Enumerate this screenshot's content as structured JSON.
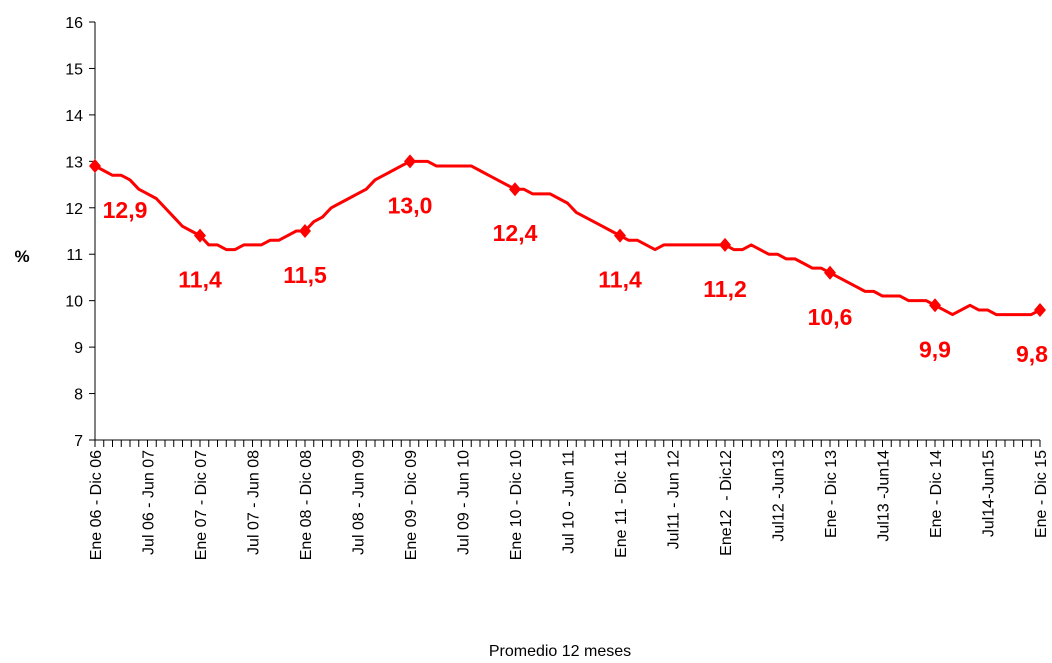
{
  "chart_data": {
    "type": "line",
    "ylabel": "%",
    "xlabel": "Promedio 12 meses",
    "categories": [
      "Ene 06 - Dic 06",
      null,
      null,
      null,
      null,
      null,
      "Jul 06 - Jun 07",
      null,
      null,
      null,
      null,
      null,
      "Ene 07 - Dic 07",
      null,
      null,
      null,
      null,
      null,
      "Jul 07 - Jun 08",
      null,
      null,
      null,
      null,
      null,
      "Ene 08 - Dic 08",
      null,
      null,
      null,
      null,
      null,
      "Jul 08 - Jun 09",
      null,
      null,
      null,
      null,
      null,
      "Ene 09 - Dic 09",
      null,
      null,
      null,
      null,
      null,
      "Jul 09 - Jun 10",
      null,
      null,
      null,
      null,
      null,
      "Ene 10 - Dic 10",
      null,
      null,
      null,
      null,
      null,
      "Jul 10 - Jun 11",
      null,
      null,
      null,
      null,
      null,
      "Ene 11 - Dic 11",
      null,
      null,
      null,
      null,
      null,
      "Jul11 - Jun 12",
      null,
      null,
      null,
      null,
      null,
      "Ene12  - Dic12",
      null,
      null,
      null,
      null,
      null,
      "Jul12 -Jun13",
      null,
      null,
      null,
      null,
      null,
      "Ene - Dic 13",
      null,
      null,
      null,
      null,
      null,
      "Jul13 -Jun14",
      null,
      null,
      null,
      null,
      null,
      "Ene - Dic 14",
      null,
      null,
      null,
      null,
      null,
      "Jul14-Jun15",
      null,
      null,
      null,
      null,
      null,
      "Ene - Dic 15"
    ],
    "series": [
      {
        "color": "#ff0000",
        "values": [
          12.9,
          12.8,
          12.7,
          12.7,
          12.6,
          12.4,
          12.3,
          12.2,
          12.0,
          11.8,
          11.6,
          11.5,
          11.4,
          11.2,
          11.2,
          11.1,
          11.1,
          11.2,
          11.2,
          11.2,
          11.3,
          11.3,
          11.4,
          11.5,
          11.5,
          11.7,
          11.8,
          12.0,
          12.1,
          12.2,
          12.3,
          12.4,
          12.6,
          12.7,
          12.8,
          12.9,
          13.0,
          13.0,
          13.0,
          12.9,
          12.9,
          12.9,
          12.9,
          12.9,
          12.8,
          12.7,
          12.6,
          12.5,
          12.4,
          12.4,
          12.3,
          12.3,
          12.3,
          12.2,
          12.1,
          11.9,
          11.8,
          11.7,
          11.6,
          11.5,
          11.4,
          11.3,
          11.3,
          11.2,
          11.1,
          11.2,
          11.2,
          11.2,
          11.2,
          11.2,
          11.2,
          11.2,
          11.2,
          11.1,
          11.1,
          11.2,
          11.1,
          11.0,
          11.0,
          10.9,
          10.9,
          10.8,
          10.7,
          10.7,
          10.6,
          10.5,
          10.4,
          10.3,
          10.2,
          10.2,
          10.1,
          10.1,
          10.1,
          10.0,
          10.0,
          10.0,
          9.9,
          9.8,
          9.7,
          9.8,
          9.9,
          9.8,
          9.8,
          9.7,
          9.7,
          9.7,
          9.7,
          9.7,
          9.8
        ],
        "value_labels": [
          "12,9",
          null,
          null,
          null,
          null,
          null,
          null,
          null,
          null,
          null,
          null,
          null,
          "11,4",
          null,
          null,
          null,
          null,
          null,
          null,
          null,
          null,
          null,
          null,
          null,
          "11,5",
          null,
          null,
          null,
          null,
          null,
          null,
          null,
          null,
          null,
          null,
          null,
          "13,0",
          null,
          null,
          null,
          null,
          null,
          null,
          null,
          null,
          null,
          null,
          null,
          "12,4",
          null,
          null,
          null,
          null,
          null,
          null,
          null,
          null,
          null,
          null,
          null,
          "11,4",
          null,
          null,
          null,
          null,
          null,
          null,
          null,
          null,
          null,
          null,
          null,
          "11,2",
          null,
          null,
          null,
          null,
          null,
          null,
          null,
          null,
          null,
          null,
          null,
          "10,6",
          null,
          null,
          null,
          null,
          null,
          null,
          null,
          null,
          null,
          null,
          null,
          "9,9",
          null,
          null,
          null,
          null,
          null,
          null,
          null,
          null,
          null,
          null,
          null,
          "9,8"
        ]
      }
    ],
    "ylim": [
      7,
      16
    ],
    "yticks": [
      7,
      8,
      9,
      10,
      11,
      12,
      13,
      14,
      15,
      16
    ]
  }
}
